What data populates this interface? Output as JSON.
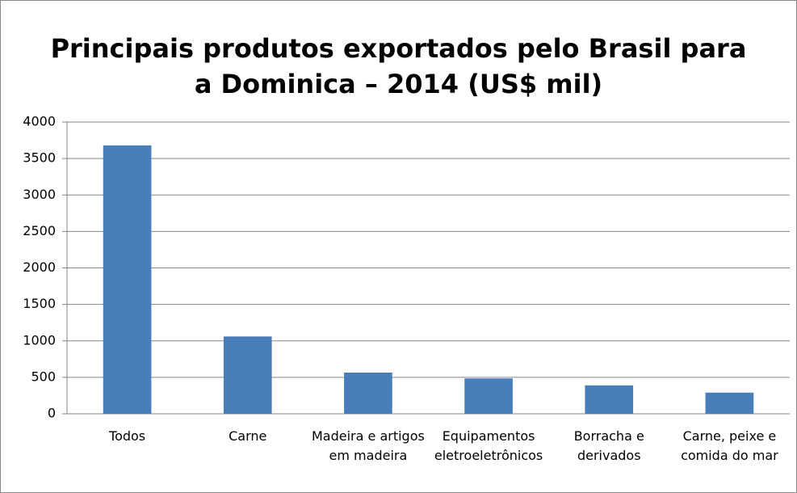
{
  "chart_data": {
    "type": "bar",
    "title": "Principais produtos exportados pelo Brasil para a Dominica – 2014 (US$ mil)",
    "categories": [
      "Todos",
      "Carne",
      "Madeira e artigos em madeira",
      "Equipamentos eletroeletrônicos",
      "Borracha e derivados",
      "Carne, peixe e comida do mar"
    ],
    "values": [
      3680,
      1060,
      565,
      485,
      390,
      290
    ],
    "color": "#4a7ebb",
    "ylim": [
      0,
      4000
    ],
    "yticks": [
      0,
      500,
      1000,
      1500,
      2000,
      2500,
      3000,
      3500,
      4000
    ],
    "grid": true
  }
}
